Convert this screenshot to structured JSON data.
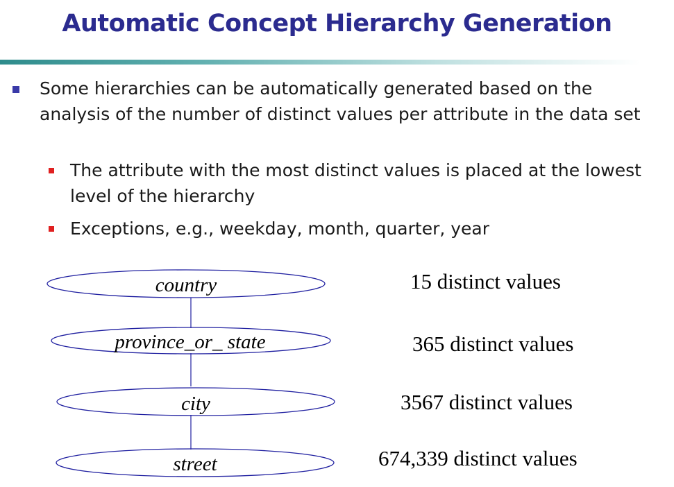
{
  "slide": {
    "title": "Automatic Concept Hierarchy Generation",
    "bullets": [
      {
        "text": "Some hierarchies can be automatically generated based on the analysis of the number of distinct values per attribute in the data set"
      },
      {
        "text": "The attribute with the most distinct values is placed at the lowest level of the hierarchy"
      },
      {
        "text": "Exceptions, e.g., weekday, month, quarter, year"
      }
    ]
  },
  "hierarchy": {
    "levels": [
      {
        "label": "country",
        "count_text": "15 distinct values"
      },
      {
        "label": "province_or_ state",
        "count_text": "365 distinct values"
      },
      {
        "label": "city",
        "count_text": "3567 distinct values"
      },
      {
        "label": "street",
        "count_text": "674,339 distinct values"
      }
    ]
  },
  "colors": {
    "title": "#2b2b8f",
    "bullet_l1": "#3a3aa8",
    "bullet_l2": "#e02020",
    "ellipse_stroke": "#1f1fa0",
    "rule_start": "#2e8c8c"
  }
}
